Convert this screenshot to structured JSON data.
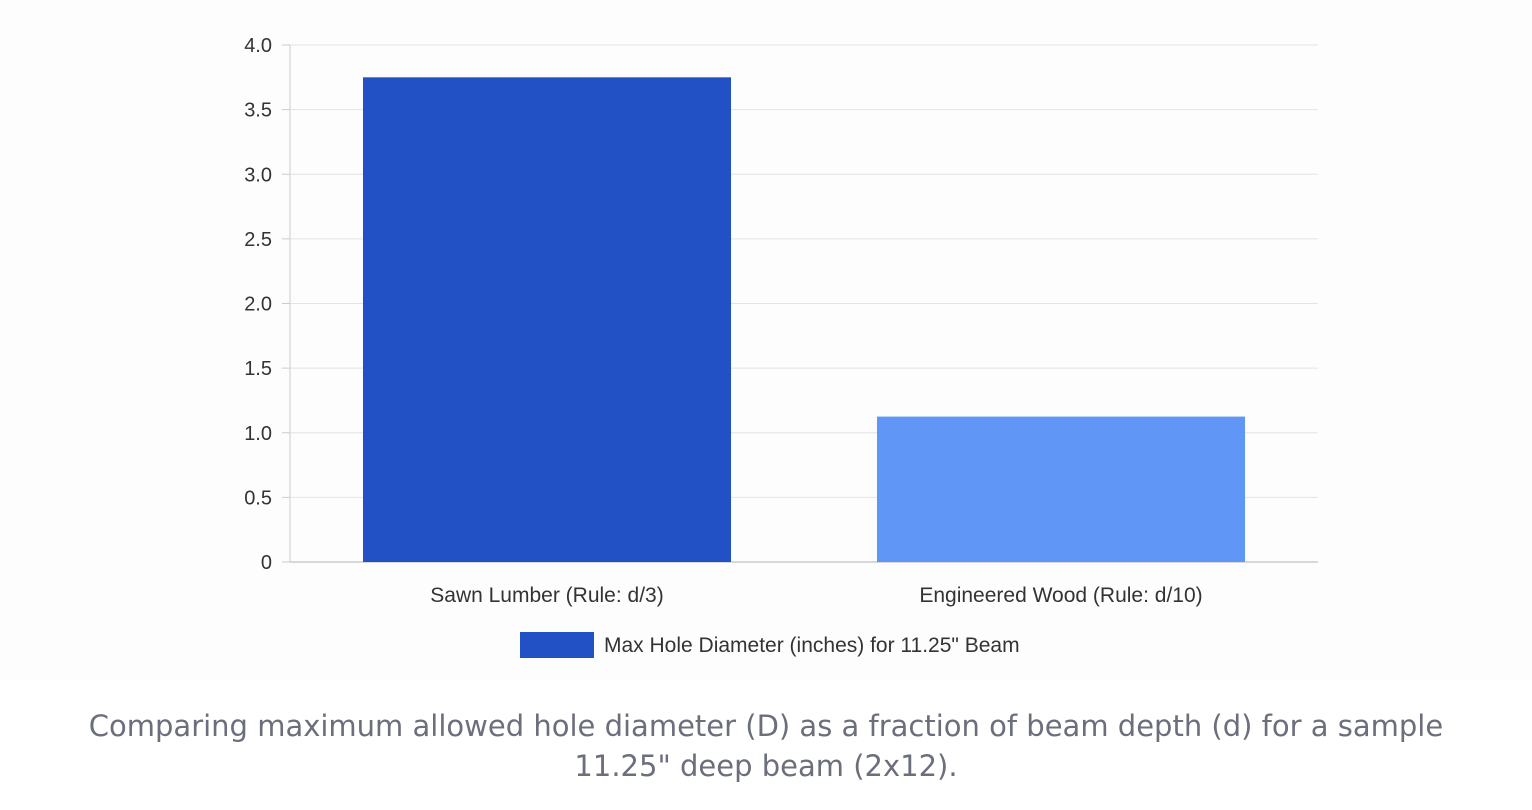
{
  "chart_data": {
    "type": "bar",
    "categories": [
      "Sawn Lumber (Rule: d/3)",
      "Engineered Wood (Rule: d/10)"
    ],
    "series": [
      {
        "name": "Max Hole Diameter (inches) for 11.25\" Beam",
        "values": [
          3.75,
          1.125
        ],
        "colors": [
          "#2251c5",
          "#6096f5"
        ]
      }
    ],
    "yticks": [
      "0",
      "0.5",
      "1.0",
      "1.5",
      "2.0",
      "2.5",
      "3.0",
      "3.5",
      "4.0"
    ],
    "ylim": [
      0,
      4
    ],
    "grid": true,
    "legend_position": "bottom"
  },
  "caption": {
    "line1": "Comparing maximum allowed hole diameter (D) as a fraction of beam depth (d) for a sample",
    "line2": "11.25\" deep beam (2x12)."
  }
}
